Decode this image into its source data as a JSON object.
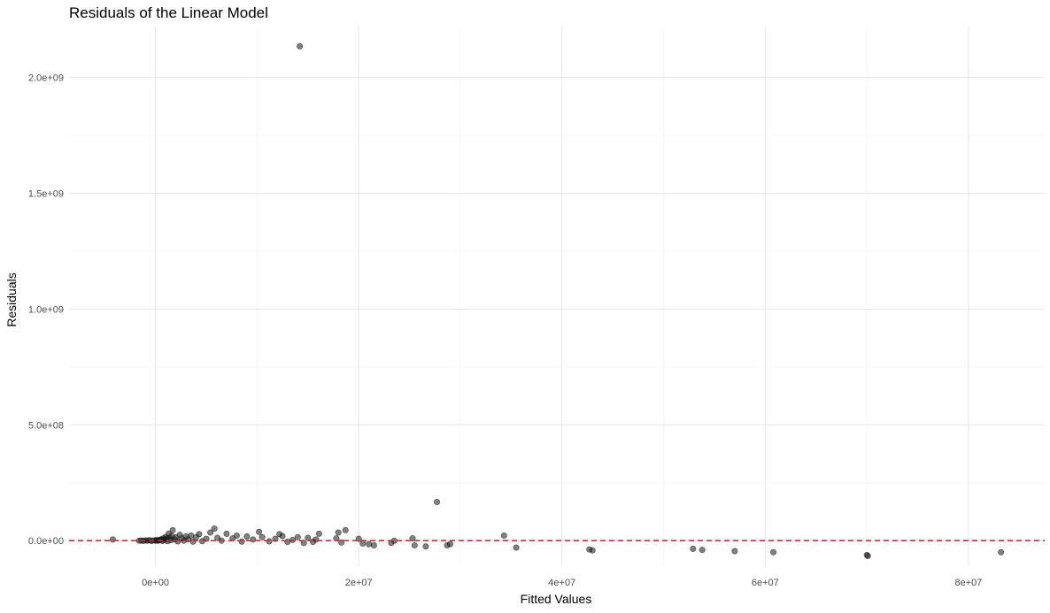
{
  "chart_data": {
    "type": "scatter",
    "title": "Residuals of the Linear Model",
    "xlabel": "Fitted Values",
    "ylabel": "Residuals",
    "xlim": [
      -8500000,
      87500000
    ],
    "ylim": [
      -110000000,
      2220000000
    ],
    "x_ticks": [
      {
        "value": 0,
        "label": "0e+00"
      },
      {
        "value": 20000000,
        "label": "2e+07"
      },
      {
        "value": 40000000,
        "label": "4e+07"
      },
      {
        "value": 60000000,
        "label": "6e+07"
      },
      {
        "value": 80000000,
        "label": "8e+07"
      }
    ],
    "y_ticks": [
      {
        "value": 0,
        "label": "0.0e+00"
      },
      {
        "value": 500000000,
        "label": "5.0e+08"
      },
      {
        "value": 1000000000,
        "label": "1.0e+09"
      },
      {
        "value": 1500000000,
        "label": "1.5e+09"
      },
      {
        "value": 2000000000,
        "label": "2.0e+09"
      }
    ],
    "grid": true,
    "point_color": "#1a1a1a",
    "point_opacity": 0.55,
    "reference_line": {
      "y": 0,
      "color": "#e8203a",
      "style": "dashed"
    },
    "series": [
      {
        "points": [
          [
            14200000,
            2135000000
          ],
          [
            27700000,
            167000000
          ],
          [
            -4200000,
            5000000
          ],
          [
            34300000,
            22000000
          ],
          [
            35500000,
            -30000000
          ],
          [
            42700000,
            -38000000
          ],
          [
            43000000,
            -42000000
          ],
          [
            52900000,
            -35000000
          ],
          [
            53800000,
            -40000000
          ],
          [
            57000000,
            -45000000
          ],
          [
            60800000,
            -50000000
          ],
          [
            70000000,
            -62000000
          ],
          [
            70100000,
            -66000000
          ],
          [
            83200000,
            -50000000
          ],
          [
            28700000,
            -20000000
          ],
          [
            29000000,
            -15000000
          ],
          [
            25300000,
            10000000
          ],
          [
            25500000,
            -20000000
          ],
          [
            26600000,
            -25000000
          ],
          [
            23200000,
            -10000000
          ],
          [
            23500000,
            0
          ],
          [
            21000000,
            -15000000
          ],
          [
            21500000,
            -20000000
          ],
          [
            20000000,
            8000000
          ],
          [
            20400000,
            -12000000
          ],
          [
            18000000,
            35000000
          ],
          [
            18700000,
            45000000
          ],
          [
            18300000,
            -8000000
          ],
          [
            17800000,
            10000000
          ],
          [
            16100000,
            30000000
          ],
          [
            15800000,
            5000000
          ],
          [
            15500000,
            -5000000
          ],
          [
            15000000,
            12000000
          ],
          [
            14600000,
            -10000000
          ],
          [
            14000000,
            15000000
          ],
          [
            13500000,
            3000000
          ],
          [
            13000000,
            -5000000
          ],
          [
            12500000,
            20000000
          ],
          [
            12200000,
            28000000
          ],
          [
            11800000,
            8000000
          ],
          [
            11200000,
            -3000000
          ],
          [
            10500000,
            15000000
          ],
          [
            10200000,
            38000000
          ],
          [
            9600000,
            5000000
          ],
          [
            9000000,
            18000000
          ],
          [
            8500000,
            -4000000
          ],
          [
            8000000,
            22000000
          ],
          [
            7600000,
            10000000
          ],
          [
            7000000,
            30000000
          ],
          [
            6500000,
            0
          ],
          [
            6100000,
            12000000
          ],
          [
            5800000,
            52000000
          ],
          [
            5400000,
            35000000
          ],
          [
            5000000,
            8000000
          ],
          [
            4600000,
            -2000000
          ],
          [
            4300000,
            28000000
          ],
          [
            4000000,
            15000000
          ],
          [
            3700000,
            -4000000
          ],
          [
            3500000,
            22000000
          ],
          [
            3200000,
            6000000
          ],
          [
            3000000,
            18000000
          ],
          [
            2800000,
            0
          ],
          [
            2600000,
            10000000
          ],
          [
            2400000,
            25000000
          ],
          [
            2200000,
            -3000000
          ],
          [
            2000000,
            14000000
          ],
          [
            1900000,
            5000000
          ],
          [
            1700000,
            45000000
          ],
          [
            1600000,
            20000000
          ],
          [
            1500000,
            2000000
          ],
          [
            1400000,
            12000000
          ],
          [
            1300000,
            30000000
          ],
          [
            1200000,
            -2000000
          ],
          [
            1100000,
            8000000
          ],
          [
            1000000,
            16000000
          ],
          [
            900000,
            3000000
          ],
          [
            800000,
            10000000
          ],
          [
            700000,
            -1000000
          ],
          [
            600000,
            6000000
          ],
          [
            500000,
            4000000
          ],
          [
            400000,
            2000000
          ],
          [
            300000,
            1000000
          ],
          [
            200000,
            0
          ],
          [
            100000,
            3000000
          ],
          [
            0,
            0
          ],
          [
            -200000,
            1000000
          ],
          [
            -400000,
            -1000000
          ],
          [
            -600000,
            2000000
          ],
          [
            -800000,
            0
          ],
          [
            -1000000,
            1000000
          ],
          [
            -1200000,
            -500000
          ],
          [
            -1400000,
            500000
          ],
          [
            -1600000,
            0
          ]
        ]
      }
    ]
  }
}
